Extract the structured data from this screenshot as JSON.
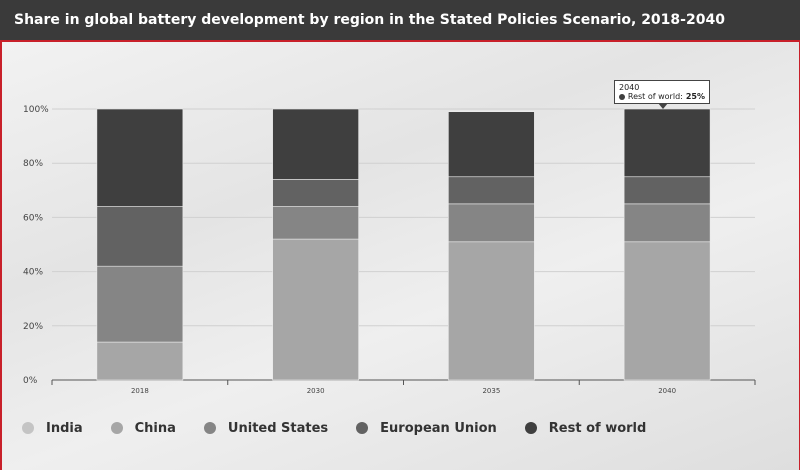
{
  "header": {
    "title": "Share in global battery development by region in the Stated Policies Scenario, 2018-2040"
  },
  "chart_data": {
    "type": "bar",
    "stacked": true,
    "title": "Share in global battery development by region in the Stated Policies Scenario, 2018-2040",
    "xlabel": "",
    "ylabel": "",
    "ylim": [
      0,
      100
    ],
    "y_ticks": [
      "0%",
      "20%",
      "40%",
      "60%",
      "80%",
      "100%"
    ],
    "categories": [
      "2018",
      "2030",
      "2035",
      "2040"
    ],
    "grid": true,
    "legend_position": "bottom",
    "series": [
      {
        "name": "India",
        "color": "#c4c4c4",
        "values": [
          0,
          0,
          0,
          0
        ]
      },
      {
        "name": "China",
        "color": "#a6a6a6",
        "values": [
          14,
          52,
          51,
          51
        ]
      },
      {
        "name": "United States",
        "color": "#858585",
        "values": [
          28,
          12,
          14,
          14
        ]
      },
      {
        "name": "European Union",
        "color": "#626262",
        "values": [
          22,
          10,
          10,
          10
        ]
      },
      {
        "name": "Rest of world",
        "color": "#3f3f3f",
        "values": [
          36,
          26,
          24,
          25
        ]
      }
    ],
    "tooltip": {
      "category": "2040",
      "series": "Rest of world",
      "label": "Rest of world:",
      "value": "25%"
    }
  }
}
